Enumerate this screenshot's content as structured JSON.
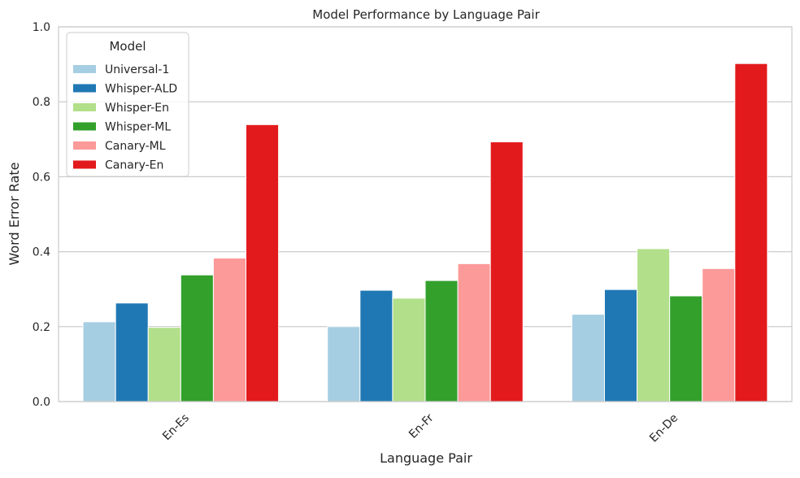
{
  "chart_data": {
    "type": "bar",
    "title": "Model Performance by Language Pair",
    "xlabel": "Language Pair",
    "ylabel": "Word Error Rate",
    "ylim": [
      0,
      1.0
    ],
    "yticks": [
      "0.0",
      "0.2",
      "0.4",
      "0.6",
      "0.8",
      "1.0"
    ],
    "grid": true,
    "legend": {
      "title": "Model",
      "placement": "top-left"
    },
    "categories": [
      "En-Es",
      "En-Fr",
      "En-De"
    ],
    "series": [
      {
        "name": "Universal-1",
        "color": "#a6cee3",
        "values": [
          0.213,
          0.2,
          0.233
        ]
      },
      {
        "name": "Whisper-ALD",
        "color": "#1f78b4",
        "values": [
          0.263,
          0.297,
          0.299
        ]
      },
      {
        "name": "Whisper-En",
        "color": "#b2df8a",
        "values": [
          0.198,
          0.276,
          0.408
        ]
      },
      {
        "name": "Whisper-ML",
        "color": "#33a02c",
        "values": [
          0.338,
          0.323,
          0.282
        ]
      },
      {
        "name": "Canary-ML",
        "color": "#fb9a99",
        "values": [
          0.383,
          0.368,
          0.355
        ]
      },
      {
        "name": "Canary-En",
        "color": "#e31a1c",
        "values": [
          0.739,
          0.693,
          0.902
        ]
      }
    ]
  }
}
